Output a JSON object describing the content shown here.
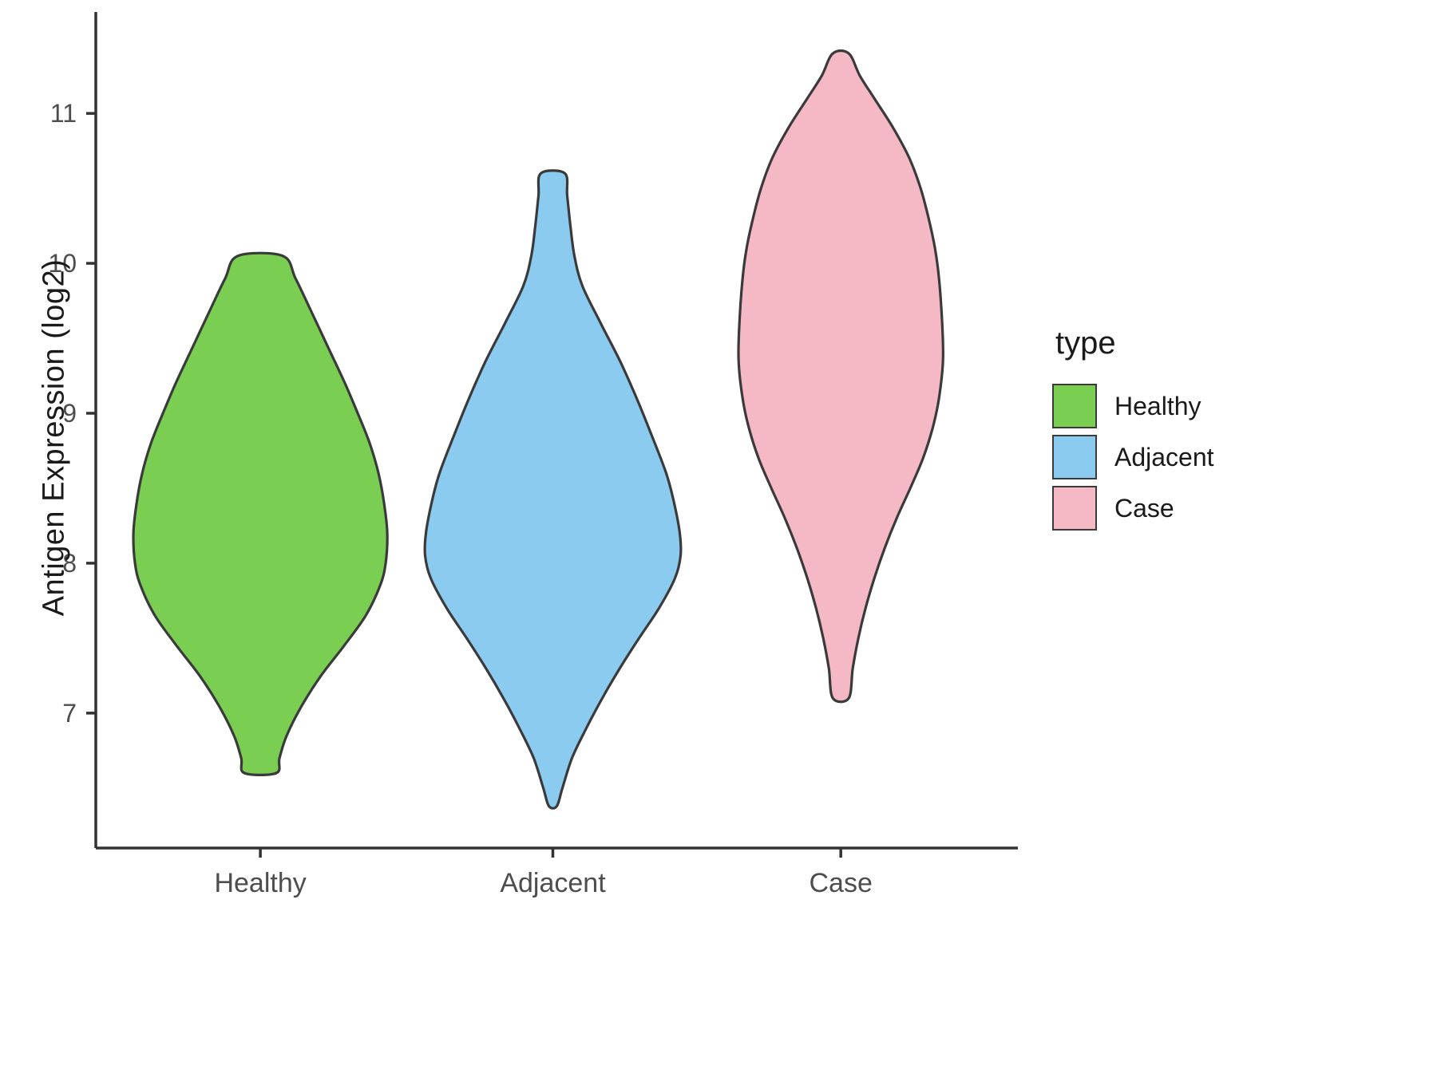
{
  "chart_data": {
    "type": "violin",
    "title": "",
    "xlabel": "",
    "ylabel": "Antigen Expression (log2)",
    "categories": [
      "Healthy",
      "Adjacent",
      "Case"
    ],
    "y_ticks": [
      7,
      8,
      9,
      10,
      11
    ],
    "y_axis_range": [
      6.1,
      11.65
    ],
    "grid": false,
    "legend_position": "right",
    "series": [
      {
        "name": "Healthy",
        "color": "#7ACE52",
        "outline": "#3a3a3a",
        "summary": {
          "min": 6.6,
          "max": 10.05,
          "widest_at": 8.15
        },
        "profile": [
          [
            10.05,
            28
          ],
          [
            9.9,
            44
          ],
          [
            9.7,
            62
          ],
          [
            9.45,
            84
          ],
          [
            9.2,
            106
          ],
          [
            9.0,
            122
          ],
          [
            8.8,
            137
          ],
          [
            8.6,
            148
          ],
          [
            8.4,
            155
          ],
          [
            8.2,
            159
          ],
          [
            8.0,
            157
          ],
          [
            7.85,
            150
          ],
          [
            7.65,
            132
          ],
          [
            7.45,
            105
          ],
          [
            7.25,
            76
          ],
          [
            7.05,
            52
          ],
          [
            6.85,
            33
          ],
          [
            6.7,
            24
          ],
          [
            6.6,
            20
          ]
        ]
      },
      {
        "name": "Adjacent",
        "color": "#8BCBF0",
        "outline": "#3a3a3a",
        "summary": {
          "min": 6.38,
          "max": 10.6,
          "widest_at": 8.1
        },
        "profile": [
          [
            10.6,
            15
          ],
          [
            10.45,
            18
          ],
          [
            10.25,
            22
          ],
          [
            10.05,
            27
          ],
          [
            9.85,
            37
          ],
          [
            9.6,
            60
          ],
          [
            9.35,
            84
          ],
          [
            9.1,
            105
          ],
          [
            8.85,
            124
          ],
          [
            8.6,
            142
          ],
          [
            8.4,
            152
          ],
          [
            8.2,
            159
          ],
          [
            8.05,
            160
          ],
          [
            7.9,
            153
          ],
          [
            7.7,
            133
          ],
          [
            7.5,
            108
          ],
          [
            7.3,
            84
          ],
          [
            7.1,
            62
          ],
          [
            6.9,
            42
          ],
          [
            6.7,
            24
          ],
          [
            6.5,
            12
          ],
          [
            6.38,
            5
          ]
        ]
      },
      {
        "name": "Case",
        "color": "#F5B9C5",
        "outline": "#3a3a3a",
        "summary": {
          "min": 7.1,
          "max": 11.4,
          "widest_at": 9.35
        },
        "profile": [
          [
            11.4,
            10
          ],
          [
            11.25,
            24
          ],
          [
            11.1,
            42
          ],
          [
            10.9,
            66
          ],
          [
            10.7,
            86
          ],
          [
            10.5,
            100
          ],
          [
            10.3,
            110
          ],
          [
            10.1,
            118
          ],
          [
            9.9,
            123
          ],
          [
            9.6,
            127
          ],
          [
            9.35,
            128
          ],
          [
            9.1,
            123
          ],
          [
            8.9,
            115
          ],
          [
            8.7,
            103
          ],
          [
            8.5,
            87
          ],
          [
            8.3,
            70
          ],
          [
            8.1,
            55
          ],
          [
            7.9,
            42
          ],
          [
            7.7,
            31
          ],
          [
            7.5,
            22
          ],
          [
            7.3,
            15
          ],
          [
            7.1,
            10
          ]
        ]
      }
    ]
  },
  "legend": {
    "title": "type",
    "items": [
      {
        "label": "Healthy",
        "color": "#7ACE52"
      },
      {
        "label": "Adjacent",
        "color": "#8BCBF0"
      },
      {
        "label": "Case",
        "color": "#F5B9C5"
      }
    ]
  },
  "axes": {
    "y_title": "Antigen Expression (log2)",
    "tick_color": "#4d4d4d",
    "line_color": "#333333"
  }
}
